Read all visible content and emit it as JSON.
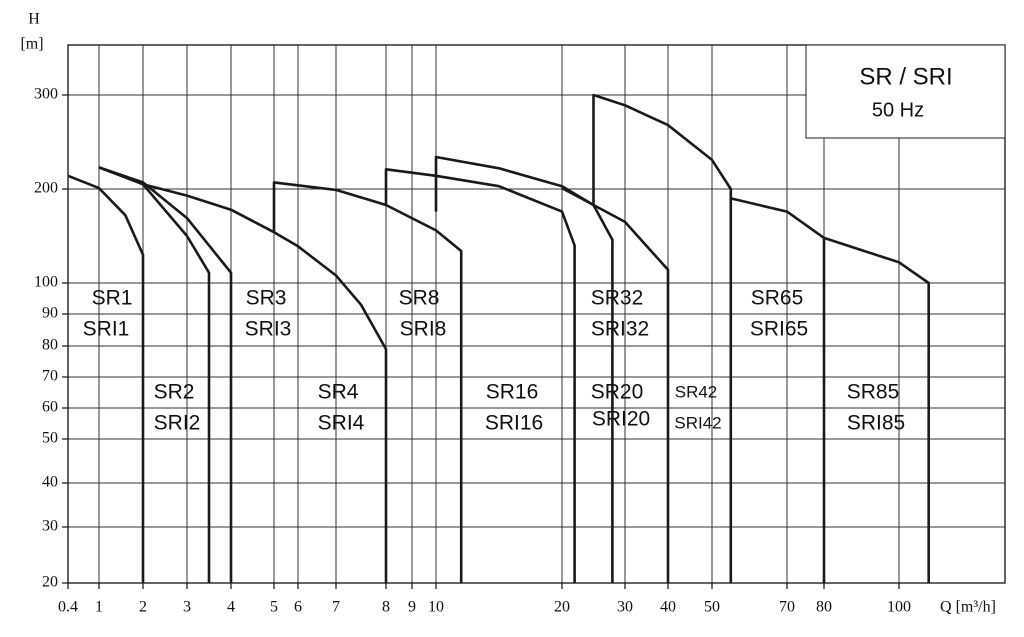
{
  "chart_data": {
    "type": "line",
    "title": "SR / SRI",
    "subtitle": "50 Hz",
    "y_label": "H",
    "y_unit": "[m]",
    "x_label": "Q [m³/h]",
    "color": "#1a1a1a",
    "grid": true,
    "xlim": [
      0.4,
      125
    ],
    "xticks": [
      0.4,
      1,
      2,
      3,
      4,
      5,
      6,
      7,
      8,
      9,
      10,
      20,
      30,
      40,
      50,
      70,
      80,
      100
    ],
    "ylim": [
      20,
      350
    ],
    "yticks": [
      20,
      30,
      40,
      50,
      60,
      70,
      80,
      90,
      100,
      200,
      300
    ],
    "series": [
      {
        "x": [
          0.4,
          1,
          1.6,
          2,
          2
        ],
        "values": [
          214,
          201,
          172,
          130,
          20
        ]
      },
      {
        "x": [
          1,
          2,
          3,
          3.5,
          3.5
        ],
        "values": [
          223,
          205,
          150,
          111,
          20
        ]
      },
      {
        "x": [
          1,
          2,
          3,
          4,
          4
        ],
        "values": [
          223,
          207,
          169,
          111,
          20
        ]
      },
      {
        "x": [
          2,
          3,
          4,
          5,
          6,
          7,
          7.5,
          8,
          8
        ],
        "values": [
          205,
          193,
          178,
          154,
          139,
          108,
          93,
          79,
          20
        ]
      },
      {
        "x": [
          5,
          5,
          7,
          8,
          10,
          12,
          12
        ],
        "values": [
          154,
          207,
          199,
          183,
          156,
          134,
          20
        ]
      },
      {
        "x": [
          8,
          8,
          10,
          15,
          20,
          22,
          22
        ],
        "values": [
          183,
          221,
          214,
          203,
          176,
          140,
          20
        ]
      },
      {
        "x": [
          10,
          10,
          15,
          20,
          25,
          28,
          28
        ],
        "values": [
          176,
          234,
          222,
          203,
          183,
          146,
          20
        ]
      },
      {
        "x": [
          20,
          30,
          40,
          40
        ],
        "values": [
          201,
          165,
          114,
          20
        ]
      },
      {
        "x": [
          25,
          25,
          30,
          40,
          50,
          55,
          55
        ],
        "values": [
          183,
          300,
          289,
          268,
          231,
          200,
          20
        ]
      },
      {
        "x": [
          55,
          70,
          80,
          80
        ],
        "values": [
          190,
          176,
          148,
          20
        ]
      },
      {
        "x": [
          80,
          90,
          100,
          107,
          107
        ],
        "values": [
          148,
          135,
          122,
          100,
          20
        ]
      }
    ],
    "annotations": [
      "SR1",
      "SRI1",
      "SR2",
      "SRI2",
      "SR3",
      "SRI3",
      "SR4",
      "SRI4",
      "SR8",
      "SRI8",
      "SR16",
      "SRI16",
      "SR32",
      "SRI32",
      "SR20",
      "SRI20",
      "SR42",
      "SRI42",
      "SR65",
      "SRI65",
      "SR85",
      "SRI85"
    ]
  }
}
